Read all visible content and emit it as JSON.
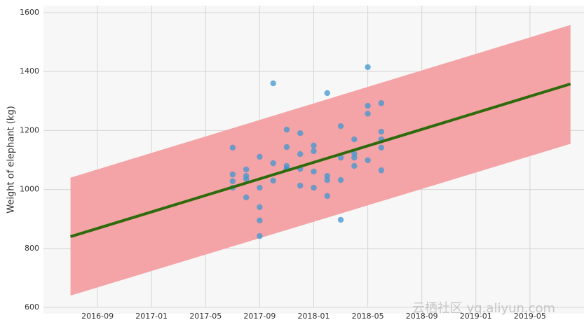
{
  "chart_data": {
    "type": "scatter",
    "y_label": "Weight of elephant (kg)",
    "watermark": "云栖社区 yq.aliyun.com",
    "x": [
      "2017-07",
      "2017-07",
      "2017-07",
      "2017-07",
      "2017-08",
      "2017-08",
      "2017-08",
      "2017-08",
      "2017-09",
      "2017-09",
      "2017-09",
      "2017-09",
      "2017-09",
      "2017-10",
      "2017-10",
      "2017-10",
      "2017-11",
      "2017-11",
      "2017-11",
      "2017-11",
      "2017-11",
      "2017-12",
      "2017-12",
      "2017-12",
      "2017-12",
      "2018-01",
      "2018-01",
      "2018-01",
      "2018-01",
      "2018-02",
      "2018-02",
      "2018-02",
      "2018-02",
      "2018-03",
      "2018-03",
      "2018-03",
      "2018-03",
      "2018-04",
      "2018-04",
      "2018-04",
      "2018-04",
      "2018-05",
      "2018-05",
      "2018-05",
      "2018-05",
      "2018-06",
      "2018-06",
      "2018-06",
      "2018-06",
      "2018-06"
    ],
    "values": [
      1006,
      1142,
      1028,
      1051,
      1046,
      1068,
      973,
      1035,
      895,
      842,
      940,
      1006,
      1111,
      1360,
      1030,
      1089,
      1080,
      1070,
      1203,
      1144,
      1070,
      1191,
      1070,
      1120,
      1013,
      1130,
      1149,
      1006,
      1061,
      1046,
      1032,
      1327,
      978,
      897,
      1108,
      1215,
      1032,
      1108,
      1170,
      1122,
      1080,
      1415,
      1257,
      1284,
      1099,
      1196,
      1142,
      1170,
      1293,
      1065
    ],
    "color": "#3f97d0",
    "fit": {
      "x": [
        "2016-07",
        "2019-08"
      ],
      "values": [
        840,
        1358
      ],
      "color": "#2e6b0c"
    },
    "band": {
      "x": [
        "2016-07",
        "2019-08"
      ],
      "lower": [
        640,
        1155
      ],
      "upper": [
        1040,
        1558
      ],
      "color": "#f4a3a6"
    },
    "xlim": [
      "2016-05",
      "2019-09"
    ],
    "xticks": [
      "2016-09",
      "2017-01",
      "2017-05",
      "2017-09",
      "2018-01",
      "2018-05",
      "2018-09",
      "2019-01",
      "2019-05"
    ],
    "ylim": [
      600,
      1600
    ],
    "yticks": [
      600,
      800,
      1000,
      1200,
      1400,
      1600
    ],
    "grid": true
  }
}
